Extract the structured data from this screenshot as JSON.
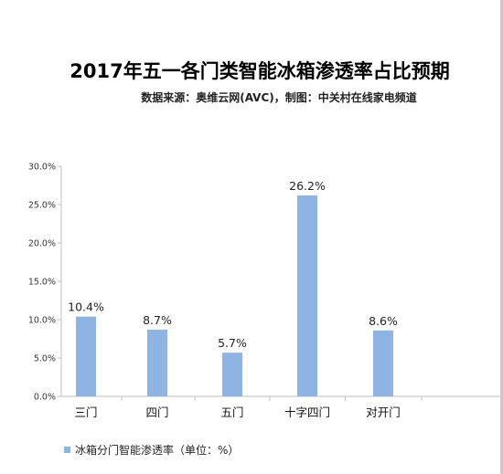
{
  "chart_data": {
    "type": "bar",
    "title": "2017年五一各门类智能冰箱渗透率占比预期",
    "subtitle": "数据来源：奥维云网(AVC)，制图：中关村在线家电频道",
    "categories": [
      "三门",
      "四门",
      "五门",
      "十字四门",
      "对开门"
    ],
    "series": [
      {
        "name": "冰箱分门智能渗透率（单位：%）",
        "values": [
          10.4,
          8.7,
          5.7,
          26.2,
          8.6
        ],
        "labels": [
          "10.4%",
          "8.7%",
          "5.7%",
          "26.2%",
          "8.6%"
        ],
        "color": "#8eb4e3"
      }
    ],
    "ylim": [
      0,
      30
    ],
    "yticks": [
      "0.0%",
      "5.0%",
      "10.0%",
      "15.0%",
      "20.0%",
      "25.0%",
      "30.0%"
    ],
    "ytick_values": [
      0,
      5,
      10,
      15,
      20,
      25,
      30
    ],
    "legend_position": "bottom-left",
    "grid": false
  }
}
